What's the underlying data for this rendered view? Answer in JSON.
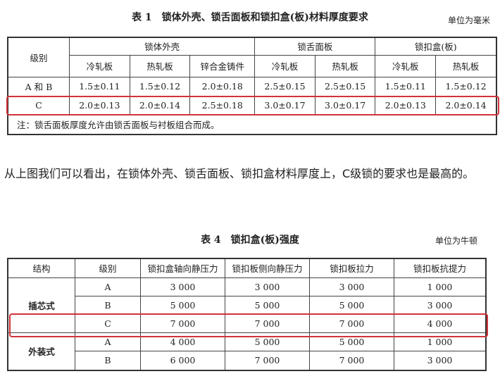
{
  "table1": {
    "title": "表 1　锁体外壳、锁舌面板和锁扣盒(板)材料厚度要求",
    "unit": "单位为毫米",
    "grade_header": "级别",
    "groups": [
      "锁体外壳",
      "锁舌面板",
      "锁扣盒(板)"
    ],
    "subheaders": [
      "冷轧板",
      "热轧板",
      "锌合金铸件",
      "冷轧板",
      "热轧板",
      "冷轧板",
      "热轧板"
    ],
    "rows": [
      {
        "grade": "A 和 B",
        "values": [
          "1.5±0.11",
          "1.5±0.12",
          "2.0±0.18",
          "2.5±0.15",
          "2.5±0.15",
          "1.5±0.11",
          "1.5±0.12"
        ]
      },
      {
        "grade": "C",
        "values": [
          "2.0±0.13",
          "2.0±0.14",
          "2.5±0.18",
          "3.0±0.17",
          "3.0±0.17",
          "2.0±0.13",
          "2.0±0.14"
        ]
      }
    ],
    "note": "注：锁舌面板厚度允许由锁舌面板与衬板组合而成。"
  },
  "paragraph": "从上图我们可以看出，在锁体外壳、锁舌面板、锁扣盒材料厚度上，C级锁的要求也是最高的。",
  "table4": {
    "title": "表 4　锁扣盒(板)强度",
    "unit": "单位为牛顿",
    "headers": [
      "结构",
      "级别",
      "锁扣盒轴向静压力",
      "锁扣板侧向静压力",
      "锁扣板拉力",
      "锁扣板抗提力"
    ],
    "groups": [
      {
        "structure": "插芯式",
        "rows": [
          {
            "grade": "A",
            "values": [
              "3 000",
              "3 000",
              "3 000",
              "1 000"
            ]
          },
          {
            "grade": "B",
            "values": [
              "5 000",
              "5 000",
              "5 000",
              "3 000"
            ]
          },
          {
            "grade": "C",
            "values": [
              "7 000",
              "7 000",
              "7 000",
              "4 000"
            ]
          }
        ]
      },
      {
        "structure": "外装式",
        "rows": [
          {
            "grade": "A",
            "values": [
              "4 000",
              "5 000",
              "5 000",
              "1 000"
            ]
          },
          {
            "grade": "B",
            "values": [
              "6 000",
              "7 000",
              "7 000",
              "3 000"
            ]
          }
        ]
      }
    ]
  },
  "colors": {
    "highlight": "#d0333a"
  }
}
